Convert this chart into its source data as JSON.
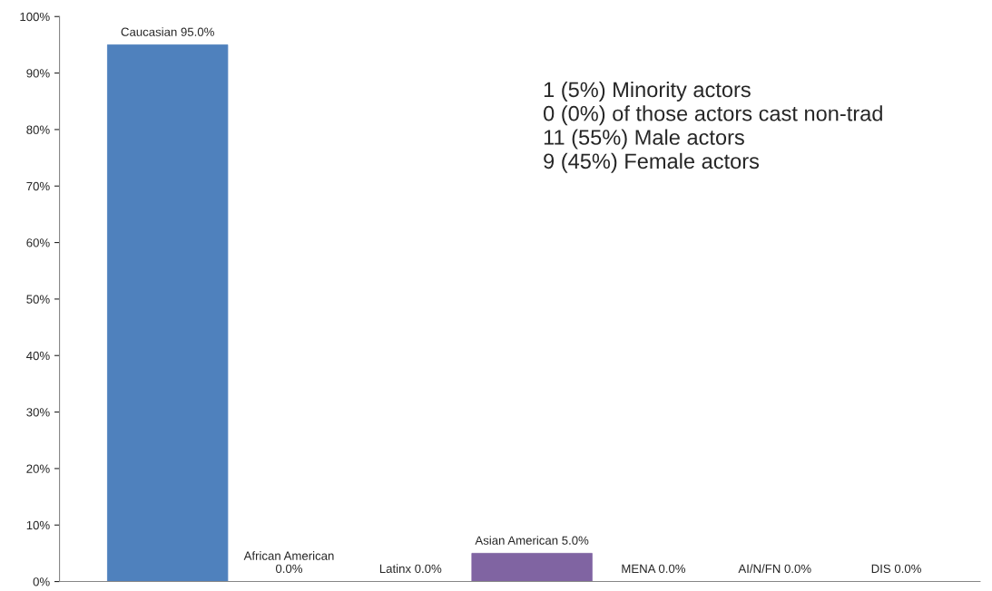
{
  "chart_data": {
    "type": "bar",
    "categories": [
      null,
      null,
      null,
      null,
      null,
      null,
      null
    ],
    "values": [
      95.0,
      0.0,
      0.0,
      5.0,
      0.0,
      0.0,
      0.0
    ],
    "colors": [
      "#4f81bd",
      "#4f81bd",
      "#4f81bd",
      "#8064a2",
      "#8064a2",
      "#8064a2",
      "#8064a2"
    ],
    "value_labels": [
      "Caucasian 95.0%",
      "African American\n0.0%",
      "Latinx 0.0%",
      "Asian American 5.0%",
      "MENA 0.0%",
      "AI/N/FN 0.0%",
      "DIS 0.0%"
    ],
    "ylim": [
      0,
      100
    ],
    "yticks": [
      {
        "value": 0,
        "label": "0%"
      },
      {
        "value": 10,
        "label": "10%"
      },
      {
        "value": 20,
        "label": "20%"
      },
      {
        "value": 30,
        "label": "30%"
      },
      {
        "value": 40,
        "label": "40%"
      },
      {
        "value": 50,
        "label": "50%"
      },
      {
        "value": 60,
        "label": "60%"
      },
      {
        "value": 70,
        "label": "70%"
      },
      {
        "value": 80,
        "label": "80%"
      },
      {
        "value": 90,
        "label": "90%"
      },
      {
        "value": 100,
        "label": "100%"
      }
    ],
    "tick_labels": "y",
    "grid": false,
    "legend": false,
    "annotations": [
      "1 (5%) Minority actors\n0 (0%) of those actors cast non-trad\n11 (55%) Male actors\n9 (45%) Female actors"
    ]
  }
}
